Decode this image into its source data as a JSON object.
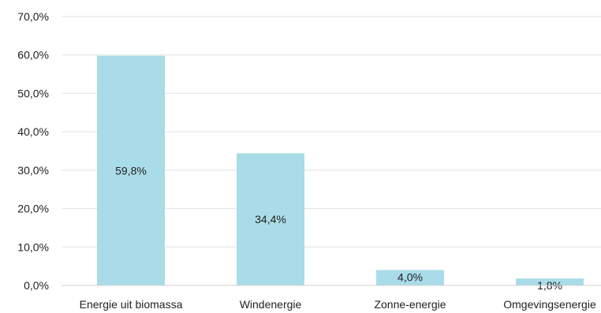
{
  "chart_data": {
    "type": "bar",
    "categories": [
      "Energie uit biomassa",
      "Windenergie",
      "Zonne-energie",
      "Omgevingsenergie"
    ],
    "values": [
      59.8,
      34.4,
      4.0,
      1.8
    ],
    "data_labels": [
      "59,8%",
      "34,4%",
      "4,0%",
      "1,8%"
    ],
    "ylim": [
      0,
      70
    ],
    "yticks": [
      0,
      10,
      20,
      30,
      40,
      50,
      60,
      70
    ],
    "ytick_labels": [
      "0,0%",
      "10,0%",
      "20,0%",
      "30,0%",
      "40,0%",
      "50,0%",
      "60,0%",
      "70,0%"
    ],
    "grid": true,
    "colors": {
      "bar": "#a9dce8",
      "grid": "#e2e2e2",
      "axis": "#cfcfcf",
      "text": "#222222"
    }
  }
}
